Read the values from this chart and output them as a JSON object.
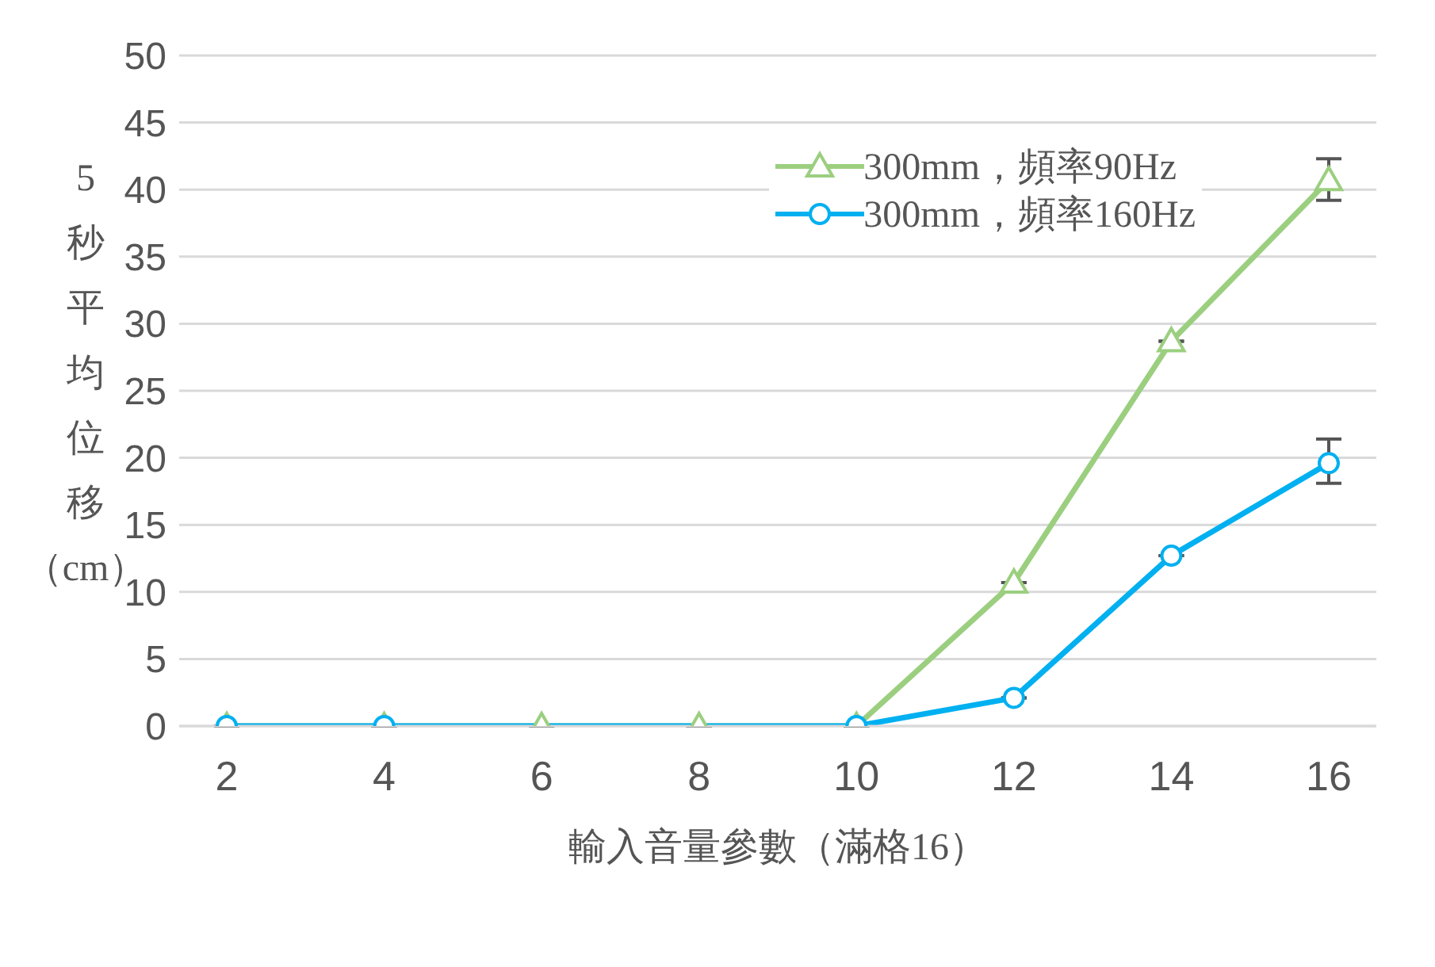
{
  "chart_data": {
    "type": "line",
    "xlabel": "輸入音量參數（滿格16）",
    "ylabel": "5秒平均位移（cm）",
    "categories": [
      "2",
      "4",
      "6",
      "8",
      "10",
      "12",
      "14",
      "16"
    ],
    "series": [
      {
        "name": "300mm，頻率90Hz",
        "color": "#9bcf7f",
        "marker": "triangle",
        "values": [
          0,
          0,
          0,
          0,
          0,
          10.7,
          28.7,
          40.7
        ],
        "errors": [
          null,
          null,
          null,
          null,
          null,
          null,
          null,
          [
            39.2,
            42.3
          ]
        ]
      },
      {
        "name": "300mm，頻率160Hz",
        "color": "#00b0f0",
        "marker": "circle",
        "values": [
          0,
          0,
          null,
          null,
          0,
          2.1,
          12.7,
          19.6
        ],
        "errors": [
          null,
          null,
          null,
          null,
          null,
          null,
          null,
          [
            18.1,
            21.4
          ]
        ]
      }
    ],
    "ylim": [
      0,
      50
    ],
    "yticks": [
      0,
      5,
      10,
      15,
      20,
      25,
      30,
      35,
      40,
      45,
      50
    ],
    "grid": "y",
    "legend": "top right"
  }
}
